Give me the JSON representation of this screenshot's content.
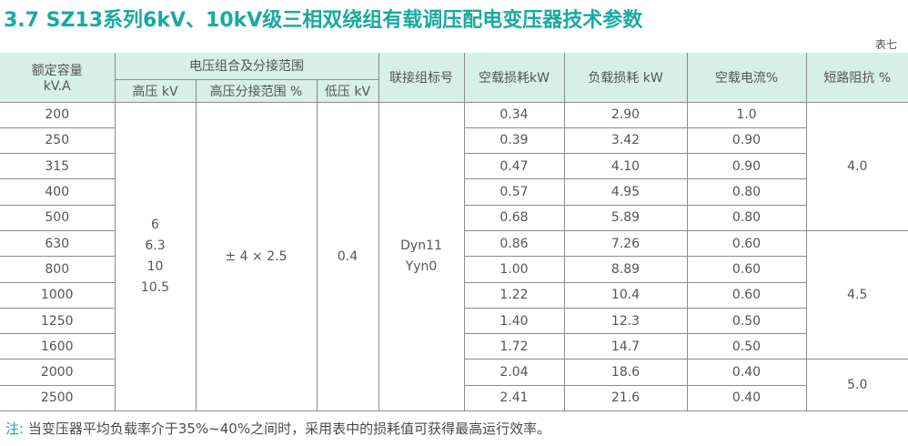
{
  "title": "3.7  SZ13系列6kV、10kV级三相双绕组有载调压配电变压器技术参数",
  "table_no": "表七",
  "headers": {
    "capacity": [
      "额定容量",
      "kV.A"
    ],
    "voltage_group": "电压组合及分接范围",
    "hv": "高压 kV",
    "hv_range": "高压分接范围 %",
    "lv": "低压 kV",
    "vector_group": "联接组标号",
    "no_load_loss": "空载损耗kW",
    "load_loss": "负载损耗 kW",
    "no_load_current": "空载电流%",
    "impedance": "短路阻抗 %"
  },
  "merged": {
    "hv": [
      "6",
      "6.3",
      "10",
      "10.5"
    ],
    "hv_range": "± 4 × 2.5",
    "lv": "0.4",
    "vector_group": [
      "Dyn11",
      "Yyn0"
    ],
    "impedance": [
      "4.0",
      "4.5",
      "5.0"
    ]
  },
  "rows": [
    {
      "capacity": "200",
      "nll": "0.34",
      "ll": "2.90",
      "nlc": "1.0"
    },
    {
      "capacity": "250",
      "nll": "0.39",
      "ll": "3.42",
      "nlc": "0.90"
    },
    {
      "capacity": "315",
      "nll": "0.47",
      "ll": "4.10",
      "nlc": "0.90"
    },
    {
      "capacity": "400",
      "nll": "0.57",
      "ll": "4.95",
      "nlc": "0.80"
    },
    {
      "capacity": "500",
      "nll": "0.68",
      "ll": "5.89",
      "nlc": "0.80"
    },
    {
      "capacity": "630",
      "nll": "0.86",
      "ll": "7.26",
      "nlc": "0.60"
    },
    {
      "capacity": "800",
      "nll": "1.00",
      "ll": "8.89",
      "nlc": "0.60"
    },
    {
      "capacity": "1000",
      "nll": "1.22",
      "ll": "10.4",
      "nlc": "0.60"
    },
    {
      "capacity": "1250",
      "nll": "1.40",
      "ll": "12.3",
      "nlc": "0.50"
    },
    {
      "capacity": "1600",
      "nll": "1.72",
      "ll": "14.7",
      "nlc": "0.50"
    },
    {
      "capacity": "2000",
      "nll": "2.04",
      "ll": "18.6",
      "nlc": "0.40"
    },
    {
      "capacity": "2500",
      "nll": "2.41",
      "ll": "21.6",
      "nlc": "0.40"
    }
  ],
  "note": {
    "label": "注:",
    "text": "当变压器平均负载率介于35%~40%之间时，采用表中的损耗值可获得最高运行效率。"
  },
  "colors": {
    "accent": "#19a9a0",
    "header_bg": "#d6efe7",
    "border": "#8c8c8c"
  }
}
